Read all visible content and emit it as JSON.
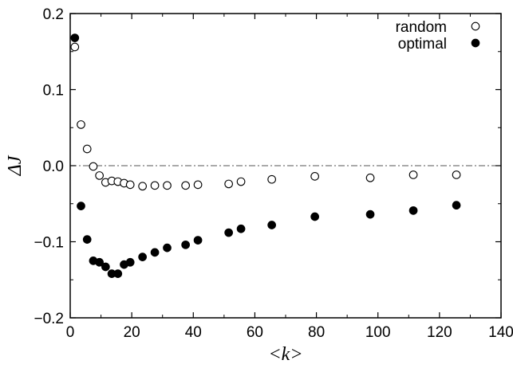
{
  "chart_data": {
    "type": "scatter",
    "xlabel": "<k>",
    "ylabel": "ΔJ",
    "xlim": [
      0,
      140
    ],
    "ylim": [
      -0.2,
      0.2
    ],
    "x_ticks": [
      0,
      20,
      40,
      60,
      80,
      100,
      120,
      140
    ],
    "y_ticks": [
      -0.2,
      -0.1,
      0.0,
      0.1,
      0.2
    ],
    "x_tick_labels": [
      "0",
      "20",
      "40",
      "60",
      "80",
      "100",
      "120",
      "140"
    ],
    "y_tick_labels": [
      "−0.2",
      "−0.1",
      "0.0",
      "0.1",
      "0.2"
    ],
    "reference_line": {
      "y": 0.0,
      "style": "dash-dot"
    },
    "grid": false,
    "legend_position": "top-right",
    "series": [
      {
        "name": "random",
        "marker": "open-circle",
        "color": "#000000",
        "x": [
          1.5,
          3.5,
          5.5,
          7.5,
          9.5,
          11.5,
          13.5,
          15.5,
          17.5,
          19.5,
          23.5,
          27.5,
          31.5,
          37.5,
          41.5,
          51.5,
          55.5,
          65.5,
          79.5,
          97.5,
          111.5,
          125.5
        ],
        "y": [
          0.156,
          0.054,
          0.022,
          -0.001,
          -0.013,
          -0.022,
          -0.02,
          -0.021,
          -0.023,
          -0.025,
          -0.027,
          -0.026,
          -0.026,
          -0.026,
          -0.025,
          -0.024,
          -0.021,
          -0.018,
          -0.014,
          -0.016,
          -0.012,
          -0.012
        ]
      },
      {
        "name": "optimal",
        "marker": "filled-circle",
        "color": "#000000",
        "x": [
          1.5,
          3.5,
          5.5,
          7.5,
          9.5,
          11.5,
          13.5,
          15.5,
          17.5,
          19.5,
          23.5,
          27.5,
          31.5,
          37.5,
          41.5,
          51.5,
          55.5,
          65.5,
          79.5,
          97.5,
          111.5,
          125.5
        ],
        "y": [
          0.168,
          -0.053,
          -0.097,
          -0.125,
          -0.127,
          -0.133,
          -0.142,
          -0.142,
          -0.13,
          -0.127,
          -0.12,
          -0.114,
          -0.108,
          -0.104,
          -0.098,
          -0.088,
          -0.083,
          -0.078,
          -0.067,
          -0.064,
          -0.059,
          -0.052
        ]
      }
    ]
  }
}
